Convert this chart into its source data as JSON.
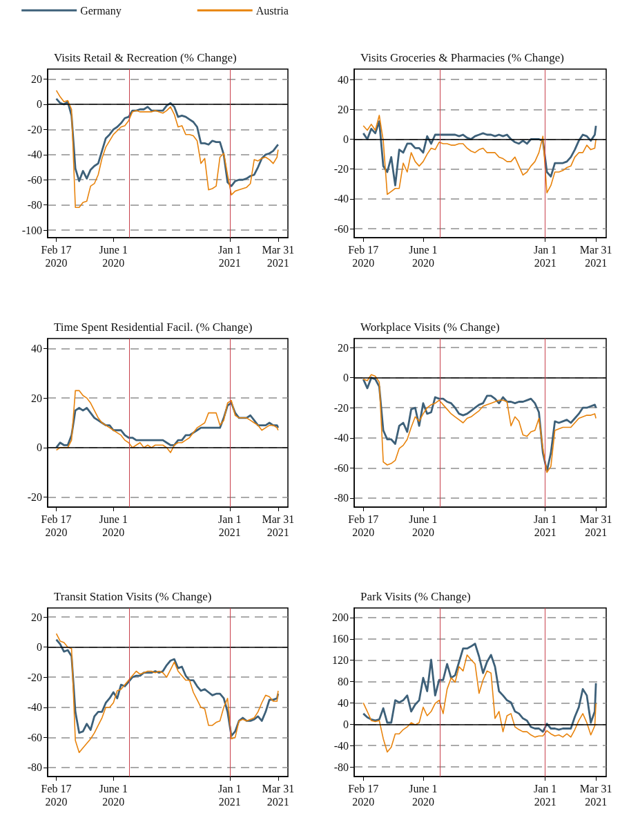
{
  "chart_data": [
    {
      "type": "line",
      "title": "Visits Retail & Recreation (% Change)",
      "legend": "top left",
      "grid": "y",
      "x": [
        "2020-02-17",
        "2020-02-24",
        "2020-03-02",
        "2020-03-09",
        "2020-03-16",
        "2020-03-23",
        "2020-03-30",
        "2020-04-06",
        "2020-04-13",
        "2020-04-20",
        "2020-04-27",
        "2020-05-04",
        "2020-05-11",
        "2020-05-18",
        "2020-05-25",
        "2020-06-01",
        "2020-06-08",
        "2020-06-15",
        "2020-06-22",
        "2020-06-29",
        "2020-07-06",
        "2020-07-13",
        "2020-07-20",
        "2020-07-27",
        "2020-08-03",
        "2020-08-10",
        "2020-08-17",
        "2020-08-24",
        "2020-08-31",
        "2020-09-07",
        "2020-09-14",
        "2020-09-21",
        "2020-09-28",
        "2020-10-05",
        "2020-10-12",
        "2020-10-19",
        "2020-10-26",
        "2020-11-02",
        "2020-11-09",
        "2020-11-16",
        "2020-11-23",
        "2020-11-30",
        "2020-12-07",
        "2020-12-14",
        "2020-12-21",
        "2020-12-28",
        "2021-01-04",
        "2021-01-11",
        "2021-01-18",
        "2021-01-25",
        "2021-02-01",
        "2021-02-08",
        "2021-02-15",
        "2021-02-22",
        "2021-03-01",
        "2021-03-08",
        "2021-03-15",
        "2021-03-22",
        "2021-03-29",
        "2021-03-31"
      ],
      "xlim": [
        "2020-02-01",
        "2021-04-18"
      ],
      "xticks": [
        {
          "value": "2020-02-17",
          "label": "Feb 17\n2020"
        },
        {
          "value": "2020-06-01",
          "label": "June 1\n2020"
        },
        {
          "value": "2021-01-01",
          "label": "Jan 1\n2021"
        },
        {
          "value": "2021-03-31",
          "label": "Mar 31\n2021"
        }
      ],
      "ylim": [
        -106,
        28
      ],
      "yticks": [
        -100,
        -80,
        -60,
        -40,
        -20,
        0,
        20
      ],
      "ref_lines": [
        {
          "axis": "y",
          "value": 0,
          "color": "#000000"
        },
        {
          "axis": "x",
          "value": "2020-06-30",
          "color": "#c8404b"
        },
        {
          "axis": "x",
          "value": "2021-01-01",
          "color": "#c8404b"
        }
      ],
      "series": [
        {
          "name": "Germany",
          "color": "#3d6079",
          "values": [
            4.5,
            1,
            0,
            2,
            -9,
            -51,
            -61,
            -53,
            -59,
            -52,
            -49,
            -47,
            -37,
            -27,
            -24,
            -20,
            -18,
            -15,
            -11,
            -10,
            -5,
            -5,
            -4,
            -4,
            -2,
            -5,
            -5,
            -5,
            -5,
            -1,
            1,
            -2,
            -10,
            -9,
            -10,
            -12,
            -14,
            -18,
            -31,
            -31,
            -32,
            -29,
            -30,
            -30,
            -40,
            -62,
            -65,
            -61,
            -60,
            -60,
            -59,
            -57,
            -56,
            -50,
            -43,
            -40,
            -39,
            -37,
            -33,
            -32
          ]
        },
        {
          "name": "Austria",
          "color": "#e8830c",
          "values": [
            11,
            6,
            2,
            3,
            -4,
            -82,
            -82,
            -78,
            -77,
            -65,
            -63,
            -56,
            -43,
            -34,
            -29,
            -24,
            -21,
            -18,
            -17,
            -13,
            -6,
            -5,
            -6,
            -6,
            -6,
            -6,
            -5,
            -6,
            -7,
            -5,
            -2,
            -8,
            -18,
            -17,
            -24,
            -24,
            -25,
            -29,
            -47,
            -43,
            -68,
            -67,
            -65,
            -42,
            -39,
            -56,
            -72,
            -69,
            -68,
            -67,
            -66,
            -63,
            -44,
            -45,
            -43,
            -42,
            -44,
            -47,
            -42,
            -36
          ]
        }
      ]
    },
    {
      "type": "line",
      "title": "Visits Groceries & Pharmacies (% Change)",
      "grid": "y",
      "x": [
        "2020-02-17",
        "2020-02-24",
        "2020-03-02",
        "2020-03-09",
        "2020-03-16",
        "2020-03-23",
        "2020-03-30",
        "2020-04-06",
        "2020-04-13",
        "2020-04-20",
        "2020-04-27",
        "2020-05-04",
        "2020-05-11",
        "2020-05-18",
        "2020-05-25",
        "2020-06-01",
        "2020-06-08",
        "2020-06-15",
        "2020-06-22",
        "2020-06-29",
        "2020-07-06",
        "2020-07-13",
        "2020-07-20",
        "2020-07-27",
        "2020-08-03",
        "2020-08-10",
        "2020-08-17",
        "2020-08-24",
        "2020-08-31",
        "2020-09-07",
        "2020-09-14",
        "2020-09-21",
        "2020-09-28",
        "2020-10-05",
        "2020-10-12",
        "2020-10-19",
        "2020-10-26",
        "2020-11-02",
        "2020-11-09",
        "2020-11-16",
        "2020-11-23",
        "2020-11-30",
        "2020-12-07",
        "2020-12-14",
        "2020-12-21",
        "2020-12-28",
        "2021-01-04",
        "2021-01-11",
        "2021-01-18",
        "2021-01-25",
        "2021-02-01",
        "2021-02-08",
        "2021-02-15",
        "2021-02-22",
        "2021-03-01",
        "2021-03-08",
        "2021-03-15",
        "2021-03-22",
        "2021-03-29",
        "2021-03-31"
      ],
      "xlim": [
        "2020-02-01",
        "2021-04-18"
      ],
      "xticks": [
        {
          "value": "2020-02-17",
          "label": "Feb 17\n2020"
        },
        {
          "value": "2020-06-01",
          "label": "June 1\n2020"
        },
        {
          "value": "2021-01-01",
          "label": "Jan 1\n2021"
        },
        {
          "value": "2021-03-31",
          "label": "Mar 31\n2021"
        }
      ],
      "ylim": [
        -66,
        47
      ],
      "yticks": [
        -60,
        -40,
        -20,
        0,
        20,
        40
      ],
      "ref_lines": [
        {
          "axis": "y",
          "value": 0,
          "color": "#000000"
        },
        {
          "axis": "x",
          "value": "2020-06-30",
          "color": "#c8404b"
        },
        {
          "axis": "x",
          "value": "2021-01-01",
          "color": "#c8404b"
        }
      ],
      "series": [
        {
          "color": "#3d6079",
          "values": [
            4,
            0,
            7,
            4,
            12,
            -18,
            -22,
            -12,
            -31,
            -7,
            -9,
            -3,
            -3,
            -6,
            -6,
            -9,
            2,
            -3,
            3,
            3,
            3,
            3,
            3,
            3,
            2,
            3,
            1,
            0,
            2,
            3,
            4,
            3,
            3,
            2,
            3,
            2,
            3,
            0,
            -2,
            -3,
            -1,
            -3,
            0,
            0,
            0,
            -1,
            -22,
            -25,
            -16,
            -16,
            -16,
            -15,
            -12,
            -7,
            -1,
            3,
            2,
            -1,
            3,
            9
          ]
        },
        {
          "color": "#e8830c",
          "values": [
            9,
            6,
            10,
            6,
            16,
            -1,
            -37,
            -35,
            -33,
            -33,
            -16,
            -22,
            -9,
            -15,
            -18,
            -15,
            -10,
            -6,
            -7,
            -2,
            -3,
            -3,
            -4,
            -4,
            -3,
            -3,
            -6,
            -8,
            -9,
            -7,
            -6,
            -9,
            -9,
            -9,
            -12,
            -13,
            -15,
            -15,
            -12,
            -18,
            -24,
            -22,
            -18,
            -15,
            -9,
            2,
            -36,
            -31,
            -22,
            -22,
            -21,
            -19,
            -18,
            -12,
            -9,
            -9,
            -4,
            -7,
            -6,
            0
          ]
        }
      ]
    },
    {
      "type": "line",
      "title": "Time Spent Residential Facil. (% Change)",
      "grid": "y",
      "x": [
        "2020-02-17",
        "2020-02-24",
        "2020-03-02",
        "2020-03-09",
        "2020-03-16",
        "2020-03-23",
        "2020-03-30",
        "2020-04-06",
        "2020-04-13",
        "2020-04-20",
        "2020-04-27",
        "2020-05-04",
        "2020-05-11",
        "2020-05-18",
        "2020-05-25",
        "2020-06-01",
        "2020-06-08",
        "2020-06-15",
        "2020-06-22",
        "2020-06-29",
        "2020-07-06",
        "2020-07-13",
        "2020-07-20",
        "2020-07-27",
        "2020-08-03",
        "2020-08-10",
        "2020-08-17",
        "2020-08-24",
        "2020-08-31",
        "2020-09-07",
        "2020-09-14",
        "2020-09-21",
        "2020-09-28",
        "2020-10-05",
        "2020-10-12",
        "2020-10-19",
        "2020-10-26",
        "2020-11-02",
        "2020-11-09",
        "2020-11-16",
        "2020-11-23",
        "2020-11-30",
        "2020-12-07",
        "2020-12-14",
        "2020-12-21",
        "2020-12-28",
        "2021-01-04",
        "2021-01-11",
        "2021-01-18",
        "2021-01-25",
        "2021-02-01",
        "2021-02-08",
        "2021-02-15",
        "2021-02-22",
        "2021-03-01",
        "2021-03-08",
        "2021-03-15",
        "2021-03-22",
        "2021-03-29",
        "2021-03-31"
      ],
      "xlim": [
        "2020-02-01",
        "2021-04-18"
      ],
      "xticks": [
        {
          "value": "2020-02-17",
          "label": "Feb 17\n2020"
        },
        {
          "value": "2020-06-01",
          "label": "June 1\n2020"
        },
        {
          "value": "2021-01-01",
          "label": "Jan 1\n2021"
        },
        {
          "value": "2021-03-31",
          "label": "Mar 31\n2021"
        }
      ],
      "ylim": [
        -24,
        44
      ],
      "yticks": [
        -20,
        0,
        20,
        40
      ],
      "ref_lines": [
        {
          "axis": "y",
          "value": 0,
          "color": "#000000"
        },
        {
          "axis": "x",
          "value": "2020-06-30",
          "color": "#c8404b"
        },
        {
          "axis": "x",
          "value": "2021-01-01",
          "color": "#c8404b"
        }
      ],
      "series": [
        {
          "color": "#3d6079",
          "values": [
            0,
            2,
            1,
            1,
            5,
            15,
            16,
            15,
            16,
            14,
            12,
            11,
            10,
            9,
            9,
            7,
            7,
            7,
            5,
            4,
            4,
            3,
            3,
            3,
            3,
            3,
            3,
            3,
            3,
            2,
            1,
            1,
            3,
            3,
            5,
            5,
            6,
            7,
            8,
            8,
            8,
            8,
            8,
            8,
            12,
            17,
            18,
            14,
            12,
            12,
            12,
            13,
            11,
            9,
            9,
            9,
            10,
            9,
            9,
            8
          ]
        },
        {
          "color": "#e8830c",
          "values": [
            -1,
            0,
            0,
            0,
            3,
            23,
            23,
            21,
            20,
            18,
            15,
            12,
            10,
            9,
            8,
            7,
            6,
            5,
            3,
            2,
            0,
            1,
            2,
            0,
            1,
            0,
            1,
            1,
            1,
            0,
            -2,
            1,
            2,
            2,
            3,
            4,
            6,
            8,
            9,
            10,
            14,
            14,
            14,
            9,
            11,
            18,
            19,
            13,
            12,
            12,
            12,
            11,
            10,
            9,
            7,
            8,
            9,
            9,
            8,
            7
          ]
        }
      ]
    },
    {
      "type": "line",
      "title": "Workplace Visits (% Change)",
      "grid": "y",
      "x": [
        "2020-02-17",
        "2020-02-24",
        "2020-03-02",
        "2020-03-09",
        "2020-03-16",
        "2020-03-23",
        "2020-03-30",
        "2020-04-06",
        "2020-04-13",
        "2020-04-20",
        "2020-04-27",
        "2020-05-04",
        "2020-05-11",
        "2020-05-18",
        "2020-05-25",
        "2020-06-01",
        "2020-06-08",
        "2020-06-15",
        "2020-06-22",
        "2020-06-29",
        "2020-07-06",
        "2020-07-13",
        "2020-07-20",
        "2020-07-27",
        "2020-08-03",
        "2020-08-10",
        "2020-08-17",
        "2020-08-24",
        "2020-08-31",
        "2020-09-07",
        "2020-09-14",
        "2020-09-21",
        "2020-09-28",
        "2020-10-05",
        "2020-10-12",
        "2020-10-19",
        "2020-10-26",
        "2020-11-02",
        "2020-11-09",
        "2020-11-16",
        "2020-11-23",
        "2020-11-30",
        "2020-12-07",
        "2020-12-14",
        "2020-12-21",
        "2020-12-28",
        "2021-01-04",
        "2021-01-11",
        "2021-01-18",
        "2021-01-25",
        "2021-02-01",
        "2021-02-08",
        "2021-02-15",
        "2021-02-22",
        "2021-03-01",
        "2021-03-08",
        "2021-03-15",
        "2021-03-22",
        "2021-03-29",
        "2021-03-31"
      ],
      "xlim": [
        "2020-02-01",
        "2021-04-18"
      ],
      "xticks": [
        {
          "value": "2020-02-17",
          "label": "Feb 17\n2020"
        },
        {
          "value": "2020-06-01",
          "label": "June 1\n2020"
        },
        {
          "value": "2021-01-01",
          "label": "Jan 1\n2021"
        },
        {
          "value": "2021-03-31",
          "label": "Mar 31\n2021"
        }
      ],
      "ylim": [
        -86,
        26
      ],
      "yticks": [
        -80,
        -60,
        -40,
        -20,
        0,
        20
      ],
      "ref_lines": [
        {
          "axis": "y",
          "value": 0,
          "color": "#000000"
        },
        {
          "axis": "x",
          "value": "2020-06-30",
          "color": "#c8404b"
        },
        {
          "axis": "x",
          "value": "2021-01-01",
          "color": "#c8404b"
        }
      ],
      "series": [
        {
          "color": "#3d6079",
          "values": [
            -1,
            -7,
            0,
            -1,
            -6,
            -35,
            -41,
            -41,
            -44,
            -32,
            -30,
            -36,
            -21,
            -20,
            -32,
            -17,
            -24,
            -23,
            -13,
            -14,
            -14,
            -16,
            -17,
            -20,
            -24,
            -25,
            -24,
            -22,
            -20,
            -18,
            -17,
            -12,
            -12,
            -14,
            -17,
            -13,
            -16,
            -16,
            -17,
            -16,
            -16,
            -15,
            -14,
            -17,
            -23,
            -50,
            -62,
            -50,
            -29,
            -30,
            -29,
            -28,
            -30,
            -27,
            -24,
            -20,
            -20,
            -19,
            -18,
            -20
          ]
        },
        {
          "color": "#e8830c",
          "values": [
            -1,
            -2,
            2,
            1,
            -3,
            -56,
            -58,
            -57,
            -55,
            -47,
            -45,
            -41,
            -33,
            -26,
            -29,
            -24,
            -20,
            -18,
            -17,
            -15,
            -18,
            -21,
            -24,
            -26,
            -28,
            -30,
            -27,
            -26,
            -24,
            -22,
            -19,
            -18,
            -17,
            -16,
            -15,
            -15,
            -16,
            -32,
            -26,
            -29,
            -38,
            -39,
            -36,
            -35,
            -27,
            -47,
            -63,
            -59,
            -35,
            -34,
            -33,
            -33,
            -33,
            -30,
            -27,
            -26,
            -25,
            -25,
            -24,
            -27
          ]
        }
      ]
    },
    {
      "type": "line",
      "title": "Transit Station Visits (% Change)",
      "grid": "y",
      "x": [
        "2020-02-17",
        "2020-02-24",
        "2020-03-02",
        "2020-03-09",
        "2020-03-16",
        "2020-03-23",
        "2020-03-30",
        "2020-04-06",
        "2020-04-13",
        "2020-04-20",
        "2020-04-27",
        "2020-05-04",
        "2020-05-11",
        "2020-05-18",
        "2020-05-25",
        "2020-06-01",
        "2020-06-08",
        "2020-06-15",
        "2020-06-22",
        "2020-06-29",
        "2020-07-06",
        "2020-07-13",
        "2020-07-20",
        "2020-07-27",
        "2020-08-03",
        "2020-08-10",
        "2020-08-17",
        "2020-08-24",
        "2020-08-31",
        "2020-09-07",
        "2020-09-14",
        "2020-09-21",
        "2020-09-28",
        "2020-10-05",
        "2020-10-12",
        "2020-10-19",
        "2020-10-26",
        "2020-11-02",
        "2020-11-09",
        "2020-11-16",
        "2020-11-23",
        "2020-11-30",
        "2020-12-07",
        "2020-12-14",
        "2020-12-21",
        "2020-12-28",
        "2021-01-04",
        "2021-01-11",
        "2021-01-18",
        "2021-01-25",
        "2021-02-01",
        "2021-02-08",
        "2021-02-15",
        "2021-02-22",
        "2021-03-01",
        "2021-03-08",
        "2021-03-15",
        "2021-03-22",
        "2021-03-29",
        "2021-03-31"
      ],
      "xlim": [
        "2020-02-01",
        "2021-04-18"
      ],
      "xticks": [
        {
          "value": "2020-02-17",
          "label": "Feb 17\n2020"
        },
        {
          "value": "2020-06-01",
          "label": "June 1\n2020"
        },
        {
          "value": "2021-01-01",
          "label": "Jan 1\n2021"
        },
        {
          "value": "2021-03-31",
          "label": "Mar 31\n2021"
        }
      ],
      "ylim": [
        -86,
        26
      ],
      "yticks": [
        -80,
        -60,
        -40,
        -20,
        0,
        20
      ],
      "ref_lines": [
        {
          "axis": "y",
          "value": 0,
          "color": "#000000"
        },
        {
          "axis": "x",
          "value": "2020-06-30",
          "color": "#c8404b"
        },
        {
          "axis": "x",
          "value": "2021-01-01",
          "color": "#c8404b"
        }
      ],
      "series": [
        {
          "color": "#3d6079",
          "values": [
            5,
            2,
            -3,
            -2,
            -6,
            -43,
            -57,
            -56,
            -51,
            -55,
            -46,
            -43,
            -43,
            -37,
            -34,
            -30,
            -34,
            -25,
            -26,
            -23,
            -20,
            -19,
            -19,
            -17,
            -17,
            -17,
            -16,
            -17,
            -16,
            -12,
            -9,
            -8,
            -14,
            -13,
            -19,
            -22,
            -22,
            -26,
            -29,
            -28,
            -30,
            -32,
            -31,
            -31,
            -34,
            -43,
            -59,
            -56,
            -49,
            -47,
            -49,
            -49,
            -48,
            -46,
            -49,
            -43,
            -35,
            -35,
            -34,
            -31
          ]
        },
        {
          "color": "#e8830c",
          "values": [
            9,
            4,
            3,
            0,
            -1,
            -62,
            -70,
            -67,
            -64,
            -61,
            -57,
            -52,
            -47,
            -40,
            -40,
            -37,
            -29,
            -28,
            -25,
            -22,
            -19,
            -16,
            -18,
            -17,
            -16,
            -16,
            -17,
            -16,
            -17,
            -20,
            -15,
            -10,
            -16,
            -19,
            -22,
            -22,
            -30,
            -35,
            -40,
            -41,
            -52,
            -52,
            -50,
            -49,
            -40,
            -34,
            -61,
            -60,
            -49,
            -48,
            -49,
            -48,
            -47,
            -43,
            -37,
            -32,
            -33,
            -36,
            -36,
            -29
          ]
        }
      ]
    },
    {
      "type": "line",
      "title": "Park Visits (% Change)",
      "grid": "y",
      "x": [
        "2020-02-17",
        "2020-02-24",
        "2020-03-02",
        "2020-03-09",
        "2020-03-16",
        "2020-03-23",
        "2020-03-30",
        "2020-04-06",
        "2020-04-13",
        "2020-04-20",
        "2020-04-27",
        "2020-05-04",
        "2020-05-11",
        "2020-05-18",
        "2020-05-25",
        "2020-06-01",
        "2020-06-08",
        "2020-06-15",
        "2020-06-22",
        "2020-06-29",
        "2020-07-06",
        "2020-07-13",
        "2020-07-20",
        "2020-07-27",
        "2020-08-03",
        "2020-08-10",
        "2020-08-17",
        "2020-08-24",
        "2020-08-31",
        "2020-09-07",
        "2020-09-14",
        "2020-09-21",
        "2020-09-28",
        "2020-10-05",
        "2020-10-12",
        "2020-10-19",
        "2020-10-26",
        "2020-11-02",
        "2020-11-09",
        "2020-11-16",
        "2020-11-23",
        "2020-11-30",
        "2020-12-07",
        "2020-12-14",
        "2020-12-21",
        "2020-12-28",
        "2021-01-04",
        "2021-01-11",
        "2021-01-18",
        "2021-01-25",
        "2021-02-01",
        "2021-02-08",
        "2021-02-15",
        "2021-02-22",
        "2021-03-01",
        "2021-03-08",
        "2021-03-15",
        "2021-03-22",
        "2021-03-29",
        "2021-03-31"
      ],
      "xlim": [
        "2020-02-01",
        "2021-04-18"
      ],
      "xticks": [
        {
          "value": "2020-02-17",
          "label": "Feb 17\n2020"
        },
        {
          "value": "2020-06-01",
          "label": "June 1\n2020"
        },
        {
          "value": "2021-01-01",
          "label": "Jan 1\n2021"
        },
        {
          "value": "2021-03-31",
          "label": "Mar 31\n2021"
        }
      ],
      "ylim": [
        -98,
        218
      ],
      "yticks": [
        -80,
        -40,
        0,
        40,
        80,
        120,
        160,
        200
      ],
      "ref_lines": [
        {
          "axis": "y",
          "value": 0,
          "color": "#000000"
        },
        {
          "axis": "x",
          "value": "2020-06-30",
          "color": "#c8404b"
        },
        {
          "axis": "x",
          "value": "2021-01-01",
          "color": "#c8404b"
        }
      ],
      "series": [
        {
          "color": "#3d6079",
          "values": [
            20,
            13,
            9,
            7,
            9,
            30,
            3,
            3,
            45,
            41,
            45,
            54,
            24,
            37,
            45,
            87,
            62,
            121,
            54,
            83,
            83,
            113,
            87,
            92,
            117,
            142,
            142,
            146,
            151,
            127,
            96,
            117,
            130,
            108,
            62,
            54,
            45,
            41,
            24,
            20,
            11,
            7,
            -5,
            -8,
            -8,
            -14,
            1,
            -8,
            -8,
            -10,
            -8,
            -8,
            -8,
            14,
            32,
            66,
            54,
            3,
            24,
            77
          ]
        },
        {
          "color": "#e8830c",
          "values": [
            40,
            24,
            7,
            5,
            7,
            -27,
            -52,
            -43,
            -18,
            -18,
            -10,
            -5,
            3,
            -1,
            3,
            32,
            16,
            24,
            39,
            45,
            20,
            66,
            87,
            79,
            108,
            100,
            130,
            121,
            113,
            58,
            83,
            100,
            96,
            11,
            24,
            -14,
            16,
            20,
            -5,
            -10,
            -14,
            -14,
            -20,
            -24,
            -22,
            -22,
            -12,
            -18,
            -22,
            -20,
            -24,
            -18,
            -24,
            -10,
            7,
            20,
            3,
            -20,
            -3,
            39
          ]
        }
      ]
    }
  ]
}
